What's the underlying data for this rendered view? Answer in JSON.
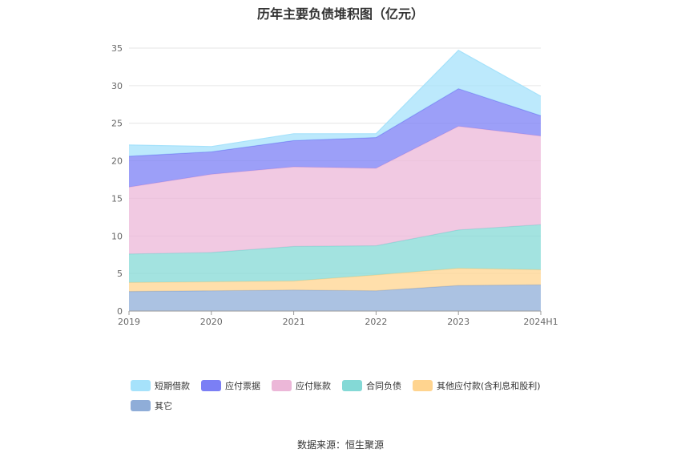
{
  "chart_data": {
    "type": "area",
    "stacked": true,
    "title": "历年主要负债堆积图（亿元）",
    "categories": [
      "2019",
      "2020",
      "2021",
      "2022",
      "2023",
      "2024H1"
    ],
    "y_ticks": [
      "0",
      "5",
      "10",
      "15",
      "20",
      "25",
      "30",
      "35"
    ],
    "ylim": [
      0,
      35
    ],
    "grid": true,
    "legend_position": "bottom",
    "series": [
      {
        "name": "其它",
        "color": "#8fadd8",
        "values": [
          2.6,
          2.7,
          2.8,
          2.7,
          3.4,
          3.5
        ]
      },
      {
        "name": "其他应付款(含利息和股利)",
        "color": "#ffd48f",
        "values": [
          1.2,
          1.2,
          1.2,
          2.1,
          2.3,
          2.0
        ]
      },
      {
        "name": "合同负债",
        "color": "#84d9d6",
        "values": [
          3.8,
          3.9,
          4.6,
          3.9,
          5.1,
          6.0
        ]
      },
      {
        "name": "应付账款",
        "color": "#ecb7d8",
        "values": [
          8.9,
          10.4,
          10.6,
          10.3,
          13.8,
          11.8
        ]
      },
      {
        "name": "应付票据",
        "color": "#7b7ff5",
        "values": [
          4.1,
          3.0,
          3.5,
          4.1,
          5.0,
          2.7
        ]
      },
      {
        "name": "短期借款",
        "color": "#a6e2fb",
        "values": [
          1.5,
          0.7,
          0.9,
          0.5,
          5.1,
          2.6
        ]
      }
    ]
  },
  "legend_order": [
    "短期借款",
    "应付票据",
    "应付账款",
    "合同负债",
    "其他应付款(含利息和股利)",
    "其它"
  ],
  "source": "数据来源：恒生聚源"
}
